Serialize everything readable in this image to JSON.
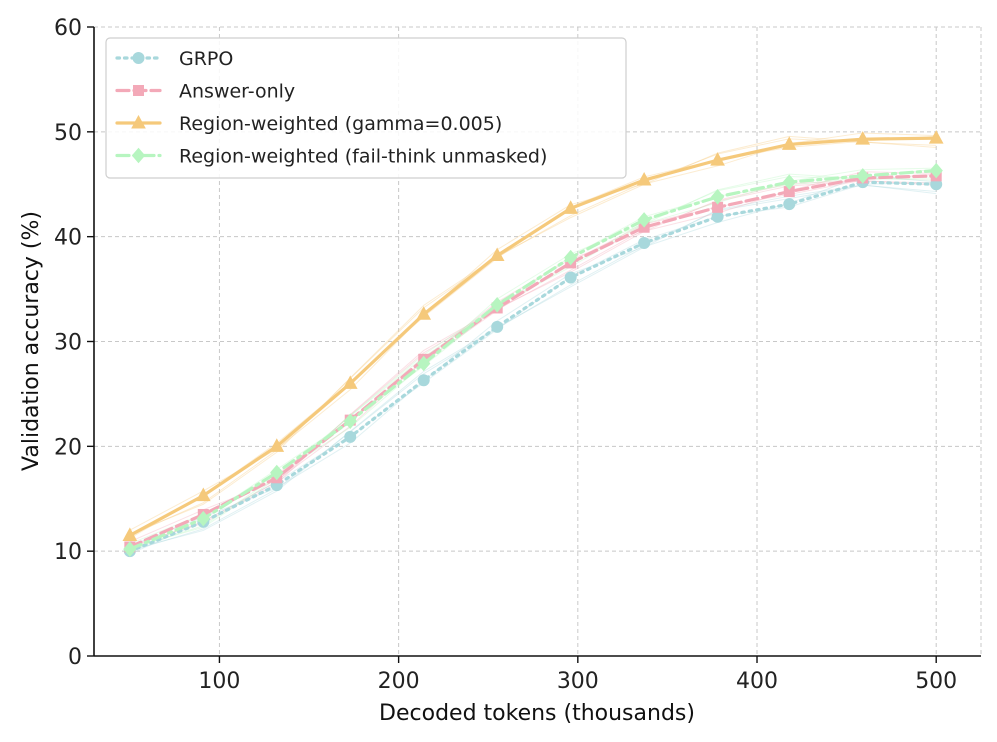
{
  "chart_data": {
    "type": "line",
    "title": "",
    "xlabel": "Decoded tokens (thousands)",
    "ylabel": "Validation accuracy (%)",
    "xlim": [
      30,
      525
    ],
    "ylim": [
      0,
      60
    ],
    "xticks": [
      100,
      200,
      300,
      400,
      500
    ],
    "yticks": [
      0,
      10,
      20,
      30,
      40,
      50,
      60
    ],
    "grid": true,
    "legend_position": "top-left",
    "x": [
      50,
      91,
      132,
      173,
      214,
      255,
      296,
      337,
      378,
      418,
      459,
      500
    ],
    "series": [
      {
        "name": "GRPO",
        "color": "#a8d8dc",
        "linestyle": "dotted",
        "marker": "circle",
        "values": [
          10.0,
          12.8,
          16.3,
          20.9,
          26.3,
          31.4,
          36.1,
          39.4,
          41.9,
          43.1,
          45.2,
          45.0
        ]
      },
      {
        "name": "Answer-only",
        "color": "#f3a9b8",
        "linestyle": "dashed",
        "marker": "square",
        "values": [
          10.4,
          13.5,
          17.0,
          22.5,
          28.3,
          33.2,
          37.5,
          40.9,
          42.8,
          44.3,
          45.6,
          45.8
        ]
      },
      {
        "name": "Region-weighted (gamma=0.005)",
        "color": "#f5c97b",
        "linestyle": "solid",
        "marker": "triangle",
        "values": [
          11.5,
          15.3,
          20.0,
          26.0,
          32.6,
          38.2,
          42.7,
          45.4,
          47.3,
          48.8,
          49.3,
          49.4
        ]
      },
      {
        "name": "Region-weighted (fail-think unmasked)",
        "color": "#b7f5c0",
        "linestyle": "dashdot",
        "marker": "diamond",
        "values": [
          10.2,
          13.1,
          17.5,
          22.4,
          27.9,
          33.5,
          38.0,
          41.6,
          43.8,
          45.2,
          45.8,
          46.3
        ]
      }
    ]
  }
}
